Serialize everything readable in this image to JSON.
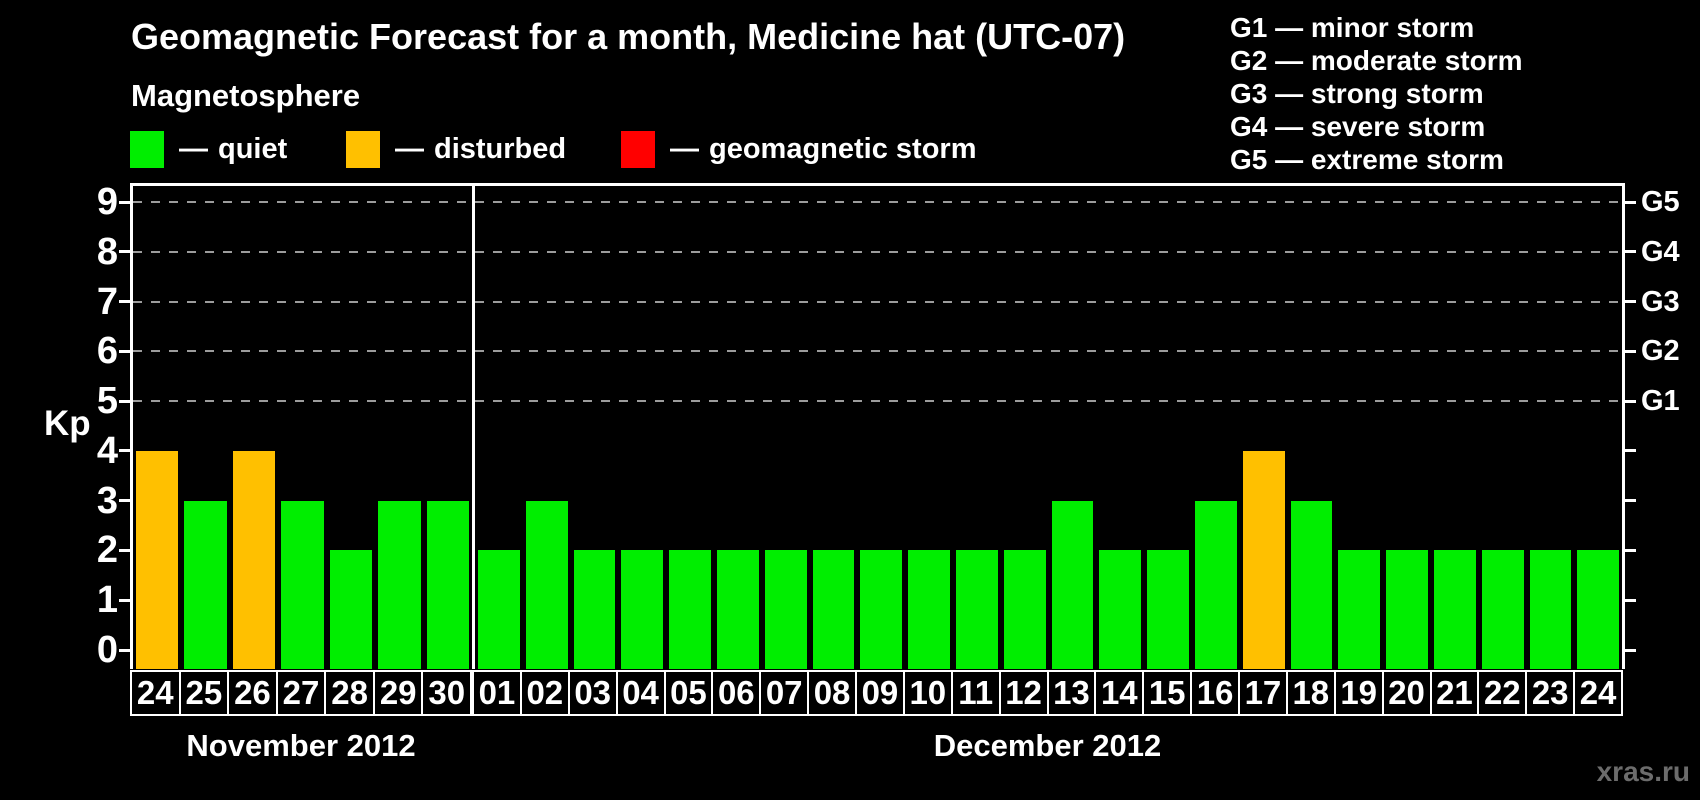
{
  "ui": {
    "dash": "—"
  },
  "header": {
    "title": "Geomagnetic Forecast for a month, Medicine hat (UTC-07)"
  },
  "magnetosphere_legend": {
    "title": "Magnetosphere",
    "items": [
      {
        "label": "quiet",
        "color": "#00ee00"
      },
      {
        "label": "disturbed",
        "color": "#ffc000"
      },
      {
        "label": "geomagnetic storm",
        "color": "#ff0000"
      }
    ]
  },
  "g_scale_legend": {
    "items": [
      {
        "code": "G1",
        "name": "minor storm"
      },
      {
        "code": "G2",
        "name": "moderate storm"
      },
      {
        "code": "G3",
        "name": "strong storm"
      },
      {
        "code": "G4",
        "name": "severe storm"
      },
      {
        "code": "G5",
        "name": "extreme storm"
      }
    ]
  },
  "watermark": "xras.ru",
  "chart_data": {
    "type": "bar",
    "title": "Geomagnetic Forecast for a month, Medicine hat (UTC-07)",
    "ylabel": "Kp",
    "ylim": [
      0,
      9
    ],
    "yticks": [
      0,
      1,
      2,
      3,
      4,
      5,
      6,
      7,
      8,
      9
    ],
    "gridlines_kp": [
      5,
      6,
      7,
      8,
      9
    ],
    "right_axis": [
      {
        "kp": 5,
        "label": "G1"
      },
      {
        "kp": 6,
        "label": "G2"
      },
      {
        "kp": 7,
        "label": "G3"
      },
      {
        "kp": 8,
        "label": "G4"
      },
      {
        "kp": 9,
        "label": "G5"
      }
    ],
    "bar_colors": {
      "quiet": "#00ee00",
      "disturbed": "#ffc000",
      "storm": "#ff0000"
    },
    "groups": [
      {
        "month": "November 2012",
        "days": [
          "24",
          "25",
          "26",
          "27",
          "28",
          "29",
          "30"
        ],
        "values": [
          4,
          3,
          4,
          3,
          2,
          3,
          3
        ],
        "statuses": [
          "disturbed",
          "quiet",
          "disturbed",
          "quiet",
          "quiet",
          "quiet",
          "quiet"
        ]
      },
      {
        "month": "December 2012",
        "days": [
          "01",
          "02",
          "03",
          "04",
          "05",
          "06",
          "07",
          "08",
          "09",
          "10",
          "11",
          "12",
          "13",
          "14",
          "15",
          "16",
          "17",
          "18",
          "19",
          "20",
          "21",
          "22",
          "23",
          "24"
        ],
        "values": [
          2,
          3,
          2,
          2,
          2,
          2,
          2,
          2,
          2,
          2,
          2,
          2,
          3,
          2,
          2,
          3,
          4,
          3,
          2,
          2,
          2,
          2,
          2,
          2
        ],
        "statuses": [
          "quiet",
          "quiet",
          "quiet",
          "quiet",
          "quiet",
          "quiet",
          "quiet",
          "quiet",
          "quiet",
          "quiet",
          "quiet",
          "quiet",
          "quiet",
          "quiet",
          "quiet",
          "quiet",
          "disturbed",
          "quiet",
          "quiet",
          "quiet",
          "quiet",
          "quiet",
          "quiet",
          "quiet"
        ]
      }
    ]
  }
}
